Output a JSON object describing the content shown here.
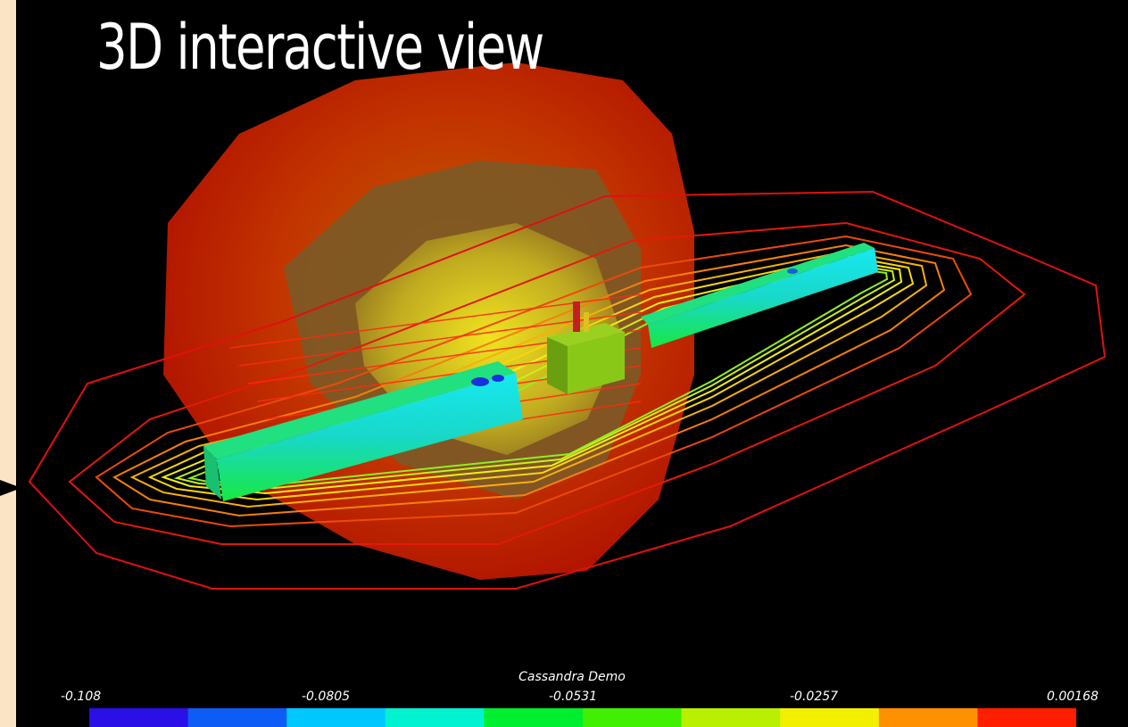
{
  "title": "3D interactive view",
  "legend": {
    "title": "Cassandra Demo",
    "ticks": [
      "-0.108",
      "-0.0805",
      "-0.0531",
      "-0.0257",
      "0.00168"
    ],
    "colors": [
      "#2a10e6",
      "#0c5cf5",
      "#00c8ff",
      "#00f2d0",
      "#00ee30",
      "#40f000",
      "#b8f000",
      "#f2f000",
      "#ff9000",
      "#ff1e00"
    ]
  },
  "scene": {
    "description_icon": "cassandra-3d-field-render-icon"
  }
}
